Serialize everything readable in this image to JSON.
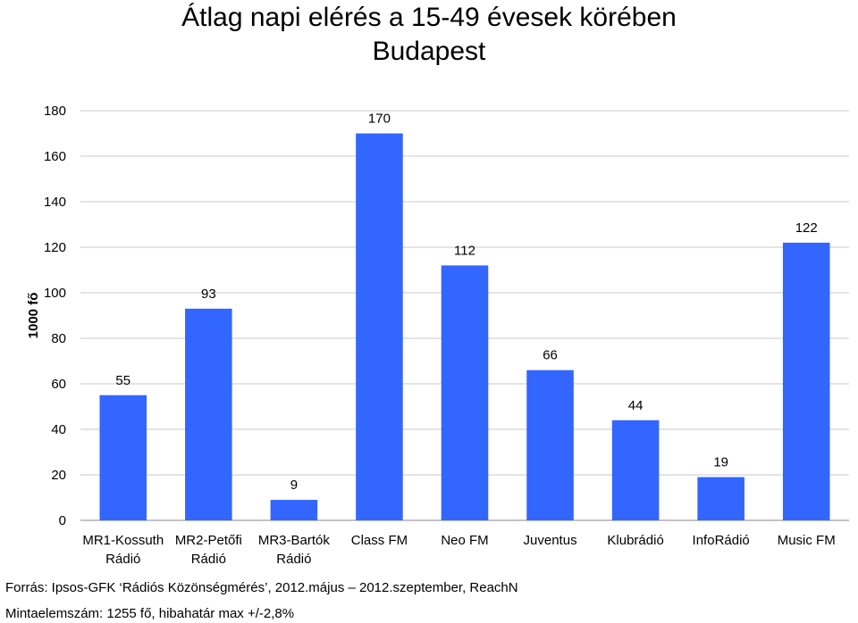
{
  "chart_data": {
    "type": "bar",
    "title": "Átlag napi elérés a 15-49 évesek körében",
    "subtitle": "Budapest",
    "ylabel": "1000 fő",
    "xlabel": "",
    "ylim": [
      0,
      180
    ],
    "yticks": [
      0,
      20,
      40,
      60,
      80,
      100,
      120,
      140,
      160,
      180
    ],
    "grid": true,
    "categories": [
      [
        "MR1-Kossuth",
        "Rádió"
      ],
      [
        "MR2-Petőfi",
        "Rádió"
      ],
      [
        "MR3-Bartók",
        "Rádió"
      ],
      [
        "Class FM"
      ],
      [
        "Neo FM"
      ],
      [
        "Juventus"
      ],
      [
        "Klubrádió"
      ],
      [
        "InfoRádió"
      ],
      [
        "Music FM"
      ]
    ],
    "values": [
      55,
      93,
      9,
      170,
      112,
      66,
      44,
      19,
      122
    ],
    "bar_color": "#3366ff"
  },
  "footer": {
    "source": "Forrás: Ipsos-GFK ‘Rádiós Közönségmérés’, 2012.május – 2012.szeptember, ReachN",
    "sample": "Mintaelemszám: 1255 fő, hibahatár max +/-2,8%"
  }
}
